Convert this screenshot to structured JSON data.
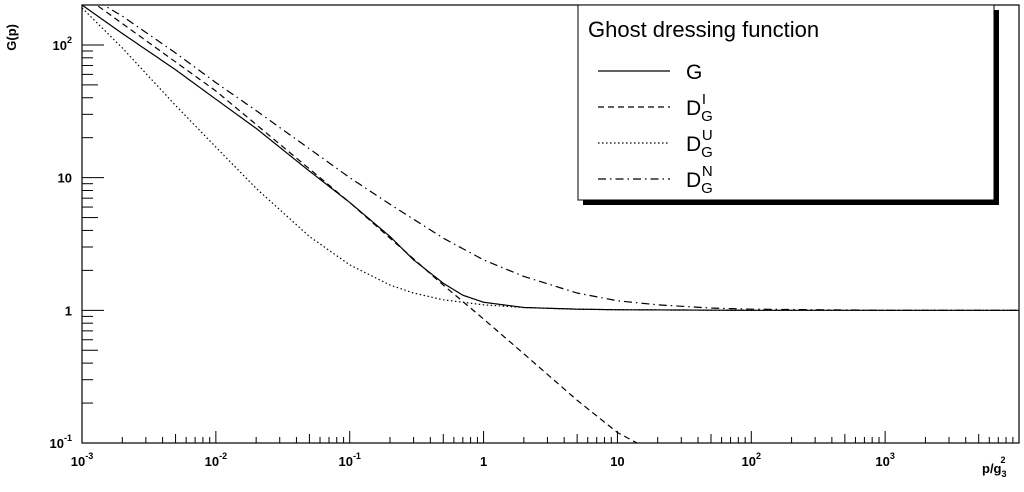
{
  "chart_data": {
    "type": "line",
    "title": "",
    "xlabel": {
      "base": "p/g",
      "sub": "3",
      "sup": "2"
    },
    "ylabel": "G(p)",
    "x_scale": "log",
    "y_scale": "log",
    "xlim": [
      0.001,
      10000
    ],
    "ylim": [
      0.1,
      200
    ],
    "x_ticks": [
      {
        "value": 0.001,
        "base": "10",
        "exp": "-3"
      },
      {
        "value": 0.01,
        "base": "10",
        "exp": "-2"
      },
      {
        "value": 0.1,
        "base": "10",
        "exp": "-1"
      },
      {
        "value": 1,
        "base": "1",
        "exp": ""
      },
      {
        "value": 10,
        "base": "10",
        "exp": ""
      },
      {
        "value": 100,
        "base": "10",
        "exp": "2"
      },
      {
        "value": 1000,
        "base": "10",
        "exp": "3"
      }
    ],
    "y_ticks": [
      {
        "value": 0.1,
        "base": "10",
        "exp": "-1"
      },
      {
        "value": 1,
        "base": "1",
        "exp": ""
      },
      {
        "value": 10,
        "base": "10",
        "exp": ""
      },
      {
        "value": 100,
        "base": "10",
        "exp": "2"
      }
    ],
    "grid": false,
    "legend": {
      "title": "Ghost dressing function",
      "placement": "top-right",
      "entries": [
        {
          "base": "G",
          "sub": "",
          "sup": ""
        },
        {
          "base": "D",
          "sub": "G",
          "sup": "I"
        },
        {
          "base": "D",
          "sub": "G",
          "sup": "U"
        },
        {
          "base": "D",
          "sub": "G",
          "sup": "N"
        }
      ]
    },
    "series": [
      {
        "style": "solid",
        "x": [
          0.001,
          0.002,
          0.005,
          0.01,
          0.02,
          0.05,
          0.1,
          0.2,
          0.3,
          0.5,
          0.7,
          1,
          2,
          5,
          10,
          100,
          1000,
          10000
        ],
        "y": [
          200,
          122,
          65,
          39,
          23.5,
          11.2,
          6.5,
          3.6,
          2.4,
          1.6,
          1.3,
          1.15,
          1.05,
          1.02,
          1.01,
          1.0,
          1.0,
          1.0
        ]
      },
      {
        "style": "dashed",
        "x": [
          0.001,
          0.01,
          0.1,
          0.2,
          0.5,
          1,
          2,
          5,
          10,
          14
        ],
        "y": [
          240,
          45,
          6.5,
          3.5,
          1.55,
          0.86,
          0.47,
          0.21,
          0.12,
          0.1
        ]
      },
      {
        "style": "dotted",
        "x": [
          0.001,
          0.002,
          0.005,
          0.01,
          0.02,
          0.05,
          0.1,
          0.2,
          0.3,
          0.5,
          1,
          2,
          5,
          10,
          100,
          1000,
          10000
        ],
        "y": [
          190,
          95,
          35,
          17,
          8.3,
          3.6,
          2.2,
          1.55,
          1.35,
          1.2,
          1.1,
          1.05,
          1.02,
          1.01,
          1.0,
          1.0,
          1.0
        ]
      },
      {
        "style": "dashdot",
        "x": [
          0.001,
          0.002,
          0.005,
          0.01,
          0.02,
          0.05,
          0.1,
          0.2,
          0.5,
          1,
          2,
          5,
          10,
          20,
          50,
          100,
          1000,
          10000
        ],
        "y": [
          250,
          165,
          87,
          52,
          32,
          16.5,
          10,
          6.3,
          3.5,
          2.4,
          1.8,
          1.35,
          1.18,
          1.1,
          1.04,
          1.02,
          1.0,
          1.0
        ]
      }
    ]
  }
}
